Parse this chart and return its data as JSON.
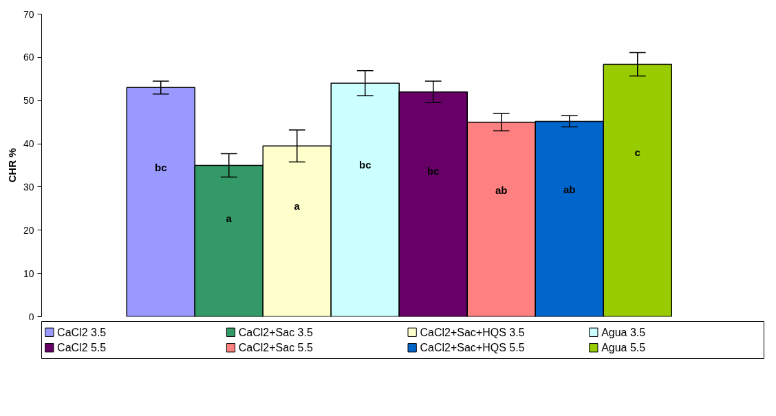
{
  "chart_data": {
    "type": "bar",
    "ylabel": "CHR %",
    "categories": [
      null
    ],
    "series": [
      {
        "name": "CaCl2 3.5",
        "color": "#9999ff",
        "values": [
          53
        ],
        "errors": [
          1.5
        ]
      },
      {
        "name": "CaCl2+Sac 3.5",
        "color": "#339966",
        "values": [
          35
        ],
        "errors": [
          2.7
        ]
      },
      {
        "name": "CaCl2+Sac+HQS 3.5",
        "color": "#ffffcc",
        "values": [
          39.5
        ],
        "errors": [
          3.7
        ]
      },
      {
        "name": "Agua 3.5",
        "color": "#ccffff",
        "values": [
          54
        ],
        "errors": [
          2.9
        ]
      },
      {
        "name": "CaCl2 5.5",
        "color": "#660066",
        "values": [
          52
        ],
        "errors": [
          2.5
        ]
      },
      {
        "name": "CaCl2+Sac 5.5",
        "color": "#ff8080",
        "values": [
          45
        ],
        "errors": [
          2.0
        ]
      },
      {
        "name": "CaCl2+Sac+HQS 5.5",
        "color": "#0066cc",
        "values": [
          45.2
        ],
        "errors": [
          1.3
        ]
      },
      {
        "name": "Agua 5.5",
        "color": "#99cc00",
        "values": [
          58.4
        ],
        "errors": [
          2.7
        ]
      }
    ],
    "annotations": [
      "bc",
      "a",
      "a",
      "bc",
      "bc",
      "ab",
      "ab",
      "c"
    ],
    "ylim": [
      0,
      70
    ],
    "yticks": [
      0,
      10,
      20,
      30,
      40,
      50,
      60,
      70
    ],
    "legend": "bottom",
    "tick_labels": "y",
    "grid": false
  }
}
